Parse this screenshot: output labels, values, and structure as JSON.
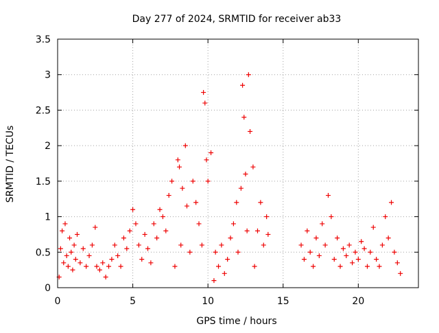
{
  "chart_data": {
    "type": "scatter",
    "title": "Day 277 of 2024, SRMTID for receiver ab33",
    "xlabel": "GPS time / hours",
    "ylabel": "SRMTID / TECUs",
    "xlim": [
      0,
      24
    ],
    "ylim": [
      0,
      3.5
    ],
    "x_ticks": [
      0,
      5,
      10,
      15,
      20
    ],
    "x_tick_labels": [
      "0",
      "5",
      "10",
      "15",
      "20"
    ],
    "y_ticks": [
      0,
      0.5,
      1,
      1.5,
      2,
      2.5,
      3,
      3.5
    ],
    "y_tick_labels": [
      "0",
      "0.5",
      "1",
      "1.5",
      "2",
      "2.5",
      "3",
      "3.5"
    ],
    "grid": true,
    "marker": "+",
    "series": [
      {
        "name": "SRMTID",
        "color": "#ee0000",
        "points": [
          [
            0.1,
            0.15
          ],
          [
            0.2,
            0.55
          ],
          [
            0.3,
            0.8
          ],
          [
            0.4,
            0.35
          ],
          [
            0.5,
            0.9
          ],
          [
            0.6,
            0.45
          ],
          [
            0.7,
            0.3
          ],
          [
            0.8,
            0.7
          ],
          [
            0.9,
            0.5
          ],
          [
            1.0,
            0.25
          ],
          [
            1.1,
            0.6
          ],
          [
            1.2,
            0.4
          ],
          [
            1.3,
            0.75
          ],
          [
            1.5,
            0.35
          ],
          [
            1.7,
            0.55
          ],
          [
            1.9,
            0.3
          ],
          [
            2.1,
            0.45
          ],
          [
            2.3,
            0.6
          ],
          [
            2.5,
            0.85
          ],
          [
            2.6,
            0.3
          ],
          [
            2.8,
            0.25
          ],
          [
            3.0,
            0.35
          ],
          [
            3.2,
            0.15
          ],
          [
            3.4,
            0.3
          ],
          [
            3.6,
            0.4
          ],
          [
            3.8,
            0.6
          ],
          [
            4.0,
            0.45
          ],
          [
            4.2,
            0.3
          ],
          [
            4.4,
            0.7
          ],
          [
            4.6,
            0.55
          ],
          [
            4.8,
            0.8
          ],
          [
            5.0,
            1.1
          ],
          [
            5.2,
            0.9
          ],
          [
            5.4,
            0.6
          ],
          [
            5.6,
            0.4
          ],
          [
            5.8,
            0.75
          ],
          [
            6.0,
            0.55
          ],
          [
            6.2,
            0.35
          ],
          [
            6.4,
            0.9
          ],
          [
            6.6,
            0.7
          ],
          [
            6.8,
            1.1
          ],
          [
            7.0,
            1.0
          ],
          [
            7.2,
            0.8
          ],
          [
            7.4,
            1.3
          ],
          [
            7.6,
            1.5
          ],
          [
            7.8,
            0.3
          ],
          [
            8.0,
            1.8
          ],
          [
            8.1,
            1.7
          ],
          [
            8.2,
            0.6
          ],
          [
            8.3,
            1.4
          ],
          [
            8.5,
            2.0
          ],
          [
            8.6,
            1.15
          ],
          [
            8.8,
            0.5
          ],
          [
            9.0,
            1.5
          ],
          [
            9.2,
            1.2
          ],
          [
            9.4,
            0.9
          ],
          [
            9.6,
            0.6
          ],
          [
            9.7,
            2.75
          ],
          [
            9.8,
            2.6
          ],
          [
            9.9,
            1.8
          ],
          [
            10.0,
            1.5
          ],
          [
            10.2,
            1.9
          ],
          [
            10.4,
            0.1
          ],
          [
            10.5,
            0.5
          ],
          [
            10.7,
            0.3
          ],
          [
            10.9,
            0.6
          ],
          [
            11.1,
            0.2
          ],
          [
            11.3,
            0.4
          ],
          [
            11.5,
            0.7
          ],
          [
            11.7,
            0.9
          ],
          [
            11.9,
            1.2
          ],
          [
            12.0,
            0.5
          ],
          [
            12.2,
            1.4
          ],
          [
            12.3,
            2.85
          ],
          [
            12.4,
            2.4
          ],
          [
            12.5,
            1.6
          ],
          [
            12.6,
            0.8
          ],
          [
            12.7,
            3.0
          ],
          [
            12.8,
            2.2
          ],
          [
            13.0,
            1.7
          ],
          [
            13.1,
            0.3
          ],
          [
            13.3,
            0.8
          ],
          [
            13.5,
            1.2
          ],
          [
            13.7,
            0.6
          ],
          [
            13.9,
            1.0
          ],
          [
            14.0,
            0.75
          ],
          [
            16.2,
            0.6
          ],
          [
            16.4,
            0.4
          ],
          [
            16.6,
            0.8
          ],
          [
            16.8,
            0.5
          ],
          [
            17.0,
            0.3
          ],
          [
            17.2,
            0.7
          ],
          [
            17.4,
            0.45
          ],
          [
            17.6,
            0.9
          ],
          [
            17.8,
            0.6
          ],
          [
            18.0,
            1.3
          ],
          [
            18.2,
            1.0
          ],
          [
            18.4,
            0.4
          ],
          [
            18.6,
            0.7
          ],
          [
            18.8,
            0.3
          ],
          [
            19.0,
            0.55
          ],
          [
            19.2,
            0.45
          ],
          [
            19.4,
            0.6
          ],
          [
            19.6,
            0.35
          ],
          [
            19.8,
            0.5
          ],
          [
            20.0,
            0.4
          ],
          [
            20.2,
            0.65
          ],
          [
            20.4,
            0.55
          ],
          [
            20.6,
            0.3
          ],
          [
            20.8,
            0.5
          ],
          [
            21.0,
            0.85
          ],
          [
            21.2,
            0.4
          ],
          [
            21.4,
            0.3
          ],
          [
            21.6,
            0.6
          ],
          [
            21.8,
            1.0
          ],
          [
            22.0,
            0.7
          ],
          [
            22.2,
            1.2
          ],
          [
            22.4,
            0.5
          ],
          [
            22.6,
            0.35
          ],
          [
            22.8,
            0.2
          ]
        ]
      }
    ]
  }
}
